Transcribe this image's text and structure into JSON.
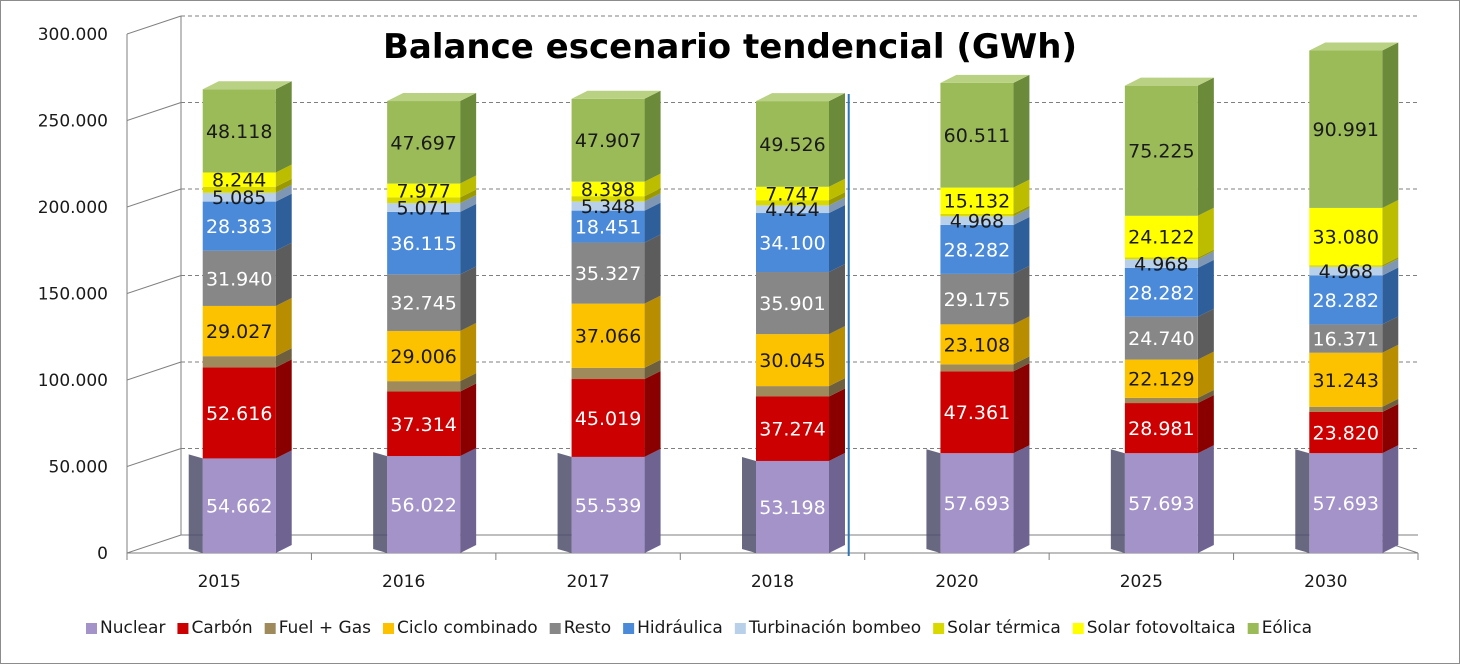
{
  "chart_data": {
    "type": "bar",
    "stacked": true,
    "title": "Balance  escenario tendencial (GWh)",
    "xlabel": "",
    "ylabel": "",
    "ylim": [
      0,
      300000
    ],
    "yticks": [
      "0",
      "50.000",
      "100.000",
      "150.000",
      "200.000",
      "250.000",
      "300.000"
    ],
    "grid": true,
    "legend_position": "bottom",
    "categories": [
      "2015",
      "2016",
      "2017",
      "2018",
      "2020",
      "2025",
      "2030"
    ],
    "series": [
      {
        "name": "Nuclear",
        "color": "#a393c8",
        "side": "#6f6391",
        "top": "#c3b8dd",
        "label_color": "#ffffff",
        "values": [
          54662,
          56022,
          55539,
          53198,
          57693,
          57693,
          57693
        ],
        "labels": [
          "54.662",
          "56.022",
          "55.539",
          "53.198",
          "57.693",
          "57.693",
          "57.693"
        ]
      },
      {
        "name": "Carbón",
        "color": "#cc0000",
        "side": "#8a0000",
        "top": "#e05050",
        "label_color": "#ffffff",
        "values": [
          52616,
          37314,
          45019,
          37274,
          47361,
          28981,
          23820
        ],
        "labels": [
          "52.616",
          "37.314",
          "45.019",
          "37.274",
          "47.361",
          "28.981",
          "23.820"
        ]
      },
      {
        "name": "Fuel + Gas",
        "color": "#9e8a5a",
        "side": "#6e603e",
        "top": "#b9a77c",
        "label_color": "#ffffff",
        "values": [
          6500,
          6000,
          6500,
          6000,
          4000,
          3000,
          3000
        ],
        "labels": []
      },
      {
        "name": "Ciclo combinado",
        "color": "#fcc200",
        "side": "#b88d00",
        "top": "#fdd64d",
        "label_color": "#1a1a1a",
        "values": [
          29027,
          29006,
          37066,
          30045,
          23108,
          22129,
          31243
        ],
        "labels": [
          "29.027",
          "29.006",
          "37.066",
          "30.045",
          "23.108",
          "22.129",
          "31.243"
        ]
      },
      {
        "name": "Resto",
        "color": "#878787",
        "side": "#5c5c5c",
        "top": "#a8a8a8",
        "label_color": "#ffffff",
        "values": [
          31940,
          32745,
          35327,
          35901,
          29175,
          24740,
          16371
        ],
        "labels": [
          "31.940",
          "32.745",
          "35.327",
          "35.901",
          "29.175",
          "24.740",
          "16.371"
        ]
      },
      {
        "name": "Hidráulica",
        "color": "#4a8ad8",
        "side": "#2f5f9a",
        "top": "#7eaee6",
        "label_color": "#ffffff",
        "values": [
          28383,
          36115,
          18451,
          34100,
          28282,
          28282,
          28282
        ],
        "labels": [
          "28.383",
          "36.115",
          "18.451",
          "34.100",
          "28.282",
          "28.282",
          "28.282"
        ]
      },
      {
        "name": "Turbinación bombeo",
        "color": "#b8d0ea",
        "side": "#7f97b3",
        "top": "#d5e4f4",
        "label_color": "#1a1a1a",
        "values": [
          5085,
          5071,
          5348,
          4424,
          4968,
          4968,
          4968
        ],
        "labels": [
          "5.085",
          "5.071",
          "5.348",
          "4.424",
          "4.968",
          "4.968",
          "4.968"
        ]
      },
      {
        "name": "Solar térmica",
        "color": "#d9d900",
        "side": "#9a9a00",
        "top": "#ebeb4d",
        "label_color": "#1a1a1a",
        "values": [
          3500,
          3300,
          3000,
          3000,
          1500,
          1000,
          1000
        ],
        "labels": []
      },
      {
        "name": "Solar fotovoltaica",
        "color": "#ffff00",
        "side": "#bdbd00",
        "top": "#ffff80",
        "label_color": "#1a1a1a",
        "values": [
          8244,
          7977,
          8398,
          7747,
          15132,
          24122,
          33080
        ],
        "labels": [
          "8.244",
          "7.977",
          "8.398",
          "7.747",
          "15.132",
          "24.122",
          "33.080"
        ]
      },
      {
        "name": "Eólica",
        "color": "#9bbb59",
        "side": "#6b8a3a",
        "top": "#b9d183",
        "label_color": "#1a1a1a",
        "values": [
          48118,
          47697,
          47907,
          49526,
          60511,
          75225,
          90991
        ],
        "labels": [
          "48.118",
          "47.697",
          "47.907",
          "49.526",
          "60.511",
          "75.225",
          "90.991"
        ]
      }
    ]
  }
}
